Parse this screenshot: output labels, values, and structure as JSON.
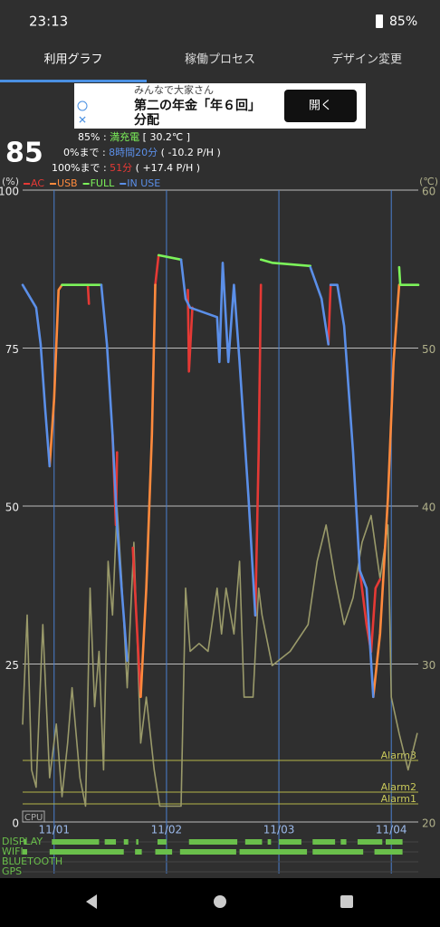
{
  "status_bar": {
    "time": "23:13",
    "battery": "85%"
  },
  "tabs": [
    "利用グラフ",
    "稼働プロセス",
    "デザイン変更"
  ],
  "ad": {
    "advertiser": "みんなで大家さん",
    "headline": [
      "第二の年金「年６回」",
      "分配"
    ],
    "button": "開く"
  },
  "battery_info": {
    "level": "85",
    "status_prefix": "85% : ",
    "status": "満充電",
    "temperature": " [ 30.2℃ ]",
    "empty_prefix": "0%まで : ",
    "empty_time": "8時間20分",
    "empty_rate": " ( -10.2 P/H )",
    "full_prefix": "100%まで : ",
    "full_time": "51分",
    "full_rate": " ( +17.4 P/H )"
  },
  "chart_data": {
    "type": "line",
    "y_label": "(%)",
    "y2_label": "(℃)",
    "cpu_label": "CPU",
    "xlim": [
      0.72,
      4.24
    ],
    "xticks": [
      {
        "value": 1,
        "label": "11/01"
      },
      {
        "value": 2,
        "label": "11/02"
      },
      {
        "value": 3,
        "label": "11/03"
      },
      {
        "value": 4,
        "label": "11/04"
      }
    ],
    "ylim": [
      0,
      100
    ],
    "yticks": [
      0,
      25,
      50,
      75,
      100
    ],
    "y2lim": [
      20,
      60
    ],
    "y2ticks": [
      20,
      30,
      40,
      50,
      60
    ],
    "grid": true,
    "series": [
      {
        "name": "AC",
        "color": "#e53935",
        "x": [
          1.3,
          1.31,
          null,
          1.52,
          1.55,
          1.56,
          null,
          1.7,
          1.74,
          1.77,
          null,
          1.9,
          1.93,
          null,
          2.19,
          2.2,
          2.23,
          null,
          2.79,
          2.82,
          2.84,
          null,
          3.44,
          3.46,
          null,
          3.72,
          3.78,
          3.82,
          3.86,
          3.9
        ],
        "values": [
          85,
          82,
          null,
          61.3,
          47,
          58.5,
          null,
          43.4,
          29.8,
          19.8,
          null,
          85,
          89.7,
          null,
          84.2,
          71.3,
          81.4,
          null,
          32.7,
          58.5,
          85,
          null,
          75.6,
          85,
          null,
          39.8,
          31.2,
          26.9,
          37,
          38.4
        ]
      },
      {
        "name": "USB",
        "color": "#ff8a3d",
        "x": [
          0.96,
          1.0,
          1.04,
          1.07,
          null,
          1.77,
          1.82,
          1.87,
          1.9,
          null,
          3.84,
          3.9,
          3.97,
          4.02,
          4.07
        ],
        "values": [
          56.3,
          67,
          84.2,
          85,
          null,
          19.8,
          37,
          61.3,
          85,
          null,
          19.8,
          29.8,
          51.3,
          72.8,
          85
        ]
      },
      {
        "name": "FULL",
        "color": "#7cf35a",
        "x": [
          1.07,
          1.42,
          null,
          1.93,
          2.13,
          null,
          2.84,
          2.94,
          3.28,
          null,
          4.07,
          4.08,
          4.24
        ],
        "values": [
          85,
          85,
          null,
          89.7,
          89,
          null,
          89,
          88.5,
          88,
          null,
          87.8,
          85,
          85
        ]
      },
      {
        "name": "IN USE",
        "color": "#5b8fe8",
        "x": [
          0.72,
          0.84,
          0.88,
          0.92,
          0.96,
          null,
          1.42,
          1.47,
          1.52,
          1.56,
          1.6,
          1.65,
          null,
          2.13,
          2.17,
          2.21,
          2.45,
          2.47,
          2.5,
          2.55,
          2.6,
          2.65,
          2.73,
          2.79,
          null,
          3.28,
          3.38,
          3.44,
          null,
          3.46,
          3.52,
          3.58,
          3.66,
          3.72,
          3.78,
          3.84
        ],
        "values": [
          85,
          81.4,
          75.6,
          65.6,
          56.3,
          null,
          85,
          75.6,
          61.3,
          47,
          37,
          25.5,
          null,
          89,
          82.8,
          81.4,
          79.9,
          72.8,
          88.5,
          72.8,
          85,
          72.8,
          51.3,
          32.7,
          null,
          87.8,
          82.8,
          75.6,
          null,
          85,
          85,
          78.5,
          58.5,
          39.8,
          37,
          19.8
        ]
      },
      {
        "color": "#9a9a6a",
        "axis": "y2",
        "x": [
          0.72,
          0.76,
          0.8,
          0.84,
          0.9,
          0.96,
          1.02,
          1.07,
          1.12,
          1.16,
          1.23,
          1.28,
          1.32,
          1.36,
          1.4,
          1.44,
          1.48,
          1.52,
          1.56,
          1.6,
          1.65,
          1.71,
          1.77,
          1.82,
          1.89,
          1.94,
          2.13,
          2.17,
          2.21,
          2.29,
          2.37,
          2.45,
          2.49,
          2.53,
          2.6,
          2.65,
          2.69,
          2.77,
          2.82,
          2.85,
          2.94,
          3.1,
          3.26,
          3.34,
          3.42,
          3.5,
          3.58,
          3.66,
          3.74,
          3.82,
          3.9,
          3.97,
          4.0,
          4.07,
          4.15,
          4.23
        ],
        "values": [
          26.2,
          33.1,
          23.3,
          22.2,
          32.5,
          22.8,
          26.2,
          21.6,
          25,
          28.5,
          22.8,
          21,
          34.8,
          27.3,
          30.8,
          23.3,
          36.5,
          33.1,
          39.9,
          35.4,
          28.5,
          37.7,
          25,
          27.9,
          23.3,
          21,
          21,
          34.8,
          30.8,
          31.3,
          30.8,
          34.8,
          31.9,
          34.8,
          31.9,
          36.5,
          27.9,
          27.9,
          34.8,
          33.1,
          29.9,
          30.8,
          32.5,
          36.5,
          38.8,
          35.4,
          32.5,
          34.2,
          37.7,
          39.4,
          35.4,
          38.8,
          27.9,
          25.6,
          23.3,
          25.6
        ]
      }
    ],
    "alarms": [
      "Alarm3",
      "Alarm2",
      "Alarm1"
    ],
    "activity": [
      {
        "label": "DISPLAY",
        "intervals": [
          [
            0.73,
            0.75
          ],
          [
            0.98,
            1.4
          ],
          [
            1.45,
            1.55
          ],
          [
            1.62,
            1.66
          ],
          [
            1.73,
            1.75
          ],
          [
            1.92,
            2.0
          ],
          [
            2.2,
            2.63
          ],
          [
            2.7,
            2.85
          ],
          [
            2.9,
            2.93
          ],
          [
            3.0,
            3.2
          ],
          [
            3.3,
            3.5
          ],
          [
            3.55,
            3.6
          ],
          [
            3.7,
            3.92
          ],
          [
            3.95,
            4.1
          ]
        ]
      },
      {
        "label": "WIFI",
        "intervals": [
          [
            0.72,
            0.76
          ],
          [
            0.96,
            1.62
          ],
          [
            1.72,
            1.78
          ],
          [
            1.9,
            2.05
          ],
          [
            2.12,
            2.62
          ],
          [
            2.65,
            3.25
          ],
          [
            3.3,
            3.75
          ],
          [
            3.85,
            4.1
          ]
        ]
      },
      {
        "label": "BLUETOOTH",
        "intervals": []
      },
      {
        "label": "GPS",
        "intervals": []
      }
    ]
  }
}
